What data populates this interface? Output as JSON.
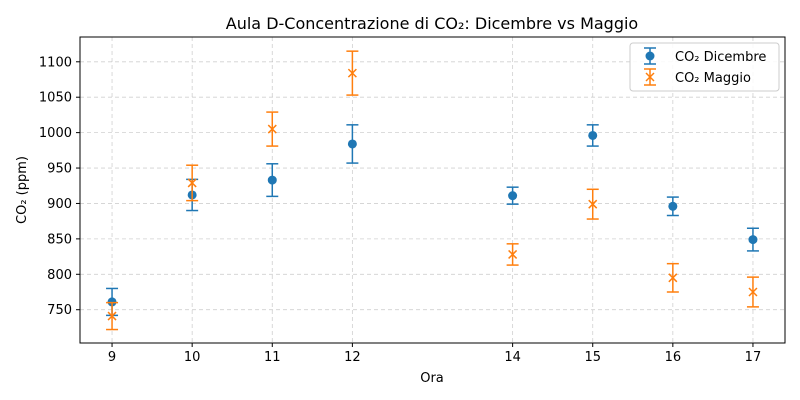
{
  "chart_data": {
    "type": "scatter",
    "title": "Aula D-Concentrazione di CO₂: Dicembre vs Maggio",
    "xlabel": "Ora",
    "ylabel": "CO₂ (ppm)",
    "x_ticks": [
      9,
      10,
      11,
      12,
      14,
      15,
      16,
      17
    ],
    "y_ticks": [
      750,
      800,
      850,
      900,
      950,
      1000,
      1050,
      1100
    ],
    "xlim": [
      8.6,
      17.4
    ],
    "ylim": [
      703,
      1135
    ],
    "grid": true,
    "grid_style": "dashed",
    "legend_position": "top-right",
    "error_bars": true,
    "series": [
      {
        "name": "CO₂ Dicembre",
        "color": "#1f77b4",
        "marker": "circle",
        "x": [
          9,
          10,
          11,
          12,
          14,
          15,
          16,
          17
        ],
        "values": [
          761,
          912,
          933,
          984,
          911,
          996,
          896,
          849
        ],
        "error": [
          19,
          22,
          23,
          27,
          12,
          15,
          13,
          16
        ]
      },
      {
        "name": "CO₂ Maggio",
        "color": "#ff7f0e",
        "marker": "x",
        "x": [
          9,
          10,
          11,
          12,
          14,
          15,
          16,
          17
        ],
        "values": [
          741,
          929,
          1005,
          1084,
          828,
          899,
          795,
          775
        ],
        "error": [
          19,
          25,
          24,
          31,
          15,
          21,
          20,
          21
        ]
      }
    ]
  }
}
